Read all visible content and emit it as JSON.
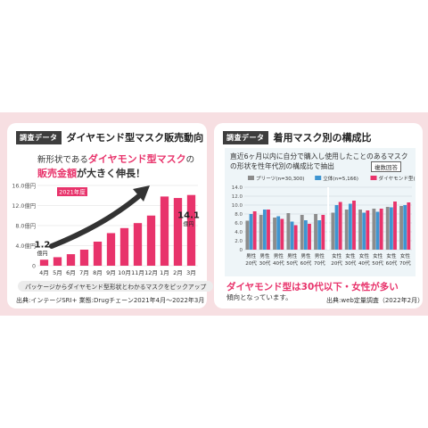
{
  "left_panel": {
    "tag": "調査データ",
    "title": "ダイヤモンド型マスク販売動向",
    "headline_1a": "新形状である",
    "headline_1b": "ダイヤモンド型マスク",
    "headline_1c": "の",
    "headline_2a": "販売金額",
    "headline_2b": "が大きく伸長！",
    "year_badge": "2021年度",
    "note": "パッケージからダイヤモンド型形状とわかるマスクをピックアップ",
    "source": "出典:インテージSRI+ 業態:Drugチェーン2021年4月〜2022年3月",
    "start_label_value": "1.2",
    "start_label_unit": "億円",
    "end_label_value": "14.1",
    "end_label_unit": "億円"
  },
  "right_panel": {
    "tag": "調査データ",
    "title": "着用マスク別の構成比",
    "desc_1": "直近6ヶ月以内に自分で購入し使用したことのあるマスク",
    "desc_2": "の形状を性年代別の構成比で抽出",
    "multi_answer": "複数回答",
    "headline_a": "ダイヤモンド型は30代以下・女性が多い",
    "headline_b": "傾向となっています。",
    "source": "出典:web定量調査（2022年2月）"
  },
  "chart_data": [
    {
      "type": "bar",
      "title": "",
      "categories": [
        "4月",
        "5月",
        "6月",
        "7月",
        "8月",
        "9月",
        "10月",
        "11月",
        "12月",
        "1月",
        "2月",
        "3月"
      ],
      "values": [
        1.2,
        1.7,
        2.3,
        3.2,
        4.8,
        6.5,
        7.5,
        8.5,
        10.0,
        13.8,
        13.5,
        14.1
      ],
      "yticks": [
        "0",
        "4.0億円",
        "8.0億円",
        "12.0億円",
        "16.0億円"
      ],
      "ylim": [
        0,
        16
      ],
      "color": "#e8336b"
    },
    {
      "type": "bar",
      "title": "",
      "categories": [
        [
          "男性",
          "20代"
        ],
        [
          "男性",
          "30代"
        ],
        [
          "男性",
          "40代"
        ],
        [
          "男性",
          "50代"
        ],
        [
          "男性",
          "60代"
        ],
        [
          "男性",
          "70代"
        ],
        [
          "女性",
          "20代"
        ],
        [
          "女性",
          "30代"
        ],
        [
          "女性",
          "40代"
        ],
        [
          "女性",
          "50代"
        ],
        [
          "女性",
          "60代"
        ],
        [
          "女性",
          "70代"
        ]
      ],
      "series": [
        {
          "name": "プリーツ(n=30,300)",
          "color": "#8c8c8c",
          "values": [
            6.5,
            7.8,
            7.2,
            8.2,
            7.8,
            8.0,
            8.3,
            9.0,
            9.0,
            9.2,
            9.6,
            9.8
          ]
        },
        {
          "name": "立体(n=5,166)",
          "color": "#3f95d1",
          "values": [
            8.0,
            9.0,
            7.5,
            6.3,
            6.6,
            6.6,
            10.0,
            10.3,
            8.3,
            8.5,
            9.5,
            10.0
          ]
        },
        {
          "name": "ダイヤモンド型(n=5,774)",
          "color": "#e8336b",
          "values": [
            8.6,
            9.0,
            6.9,
            5.5,
            5.8,
            7.8,
            10.7,
            11.0,
            8.8,
            9.2,
            10.8,
            10.6
          ]
        }
      ],
      "yticks": [
        "0",
        "2.0",
        "4.0",
        "6.0",
        "8.0",
        "10.0",
        "12.0",
        "14.0"
      ],
      "ylim": [
        0,
        14
      ],
      "grid": true,
      "legend_position": "top"
    }
  ]
}
